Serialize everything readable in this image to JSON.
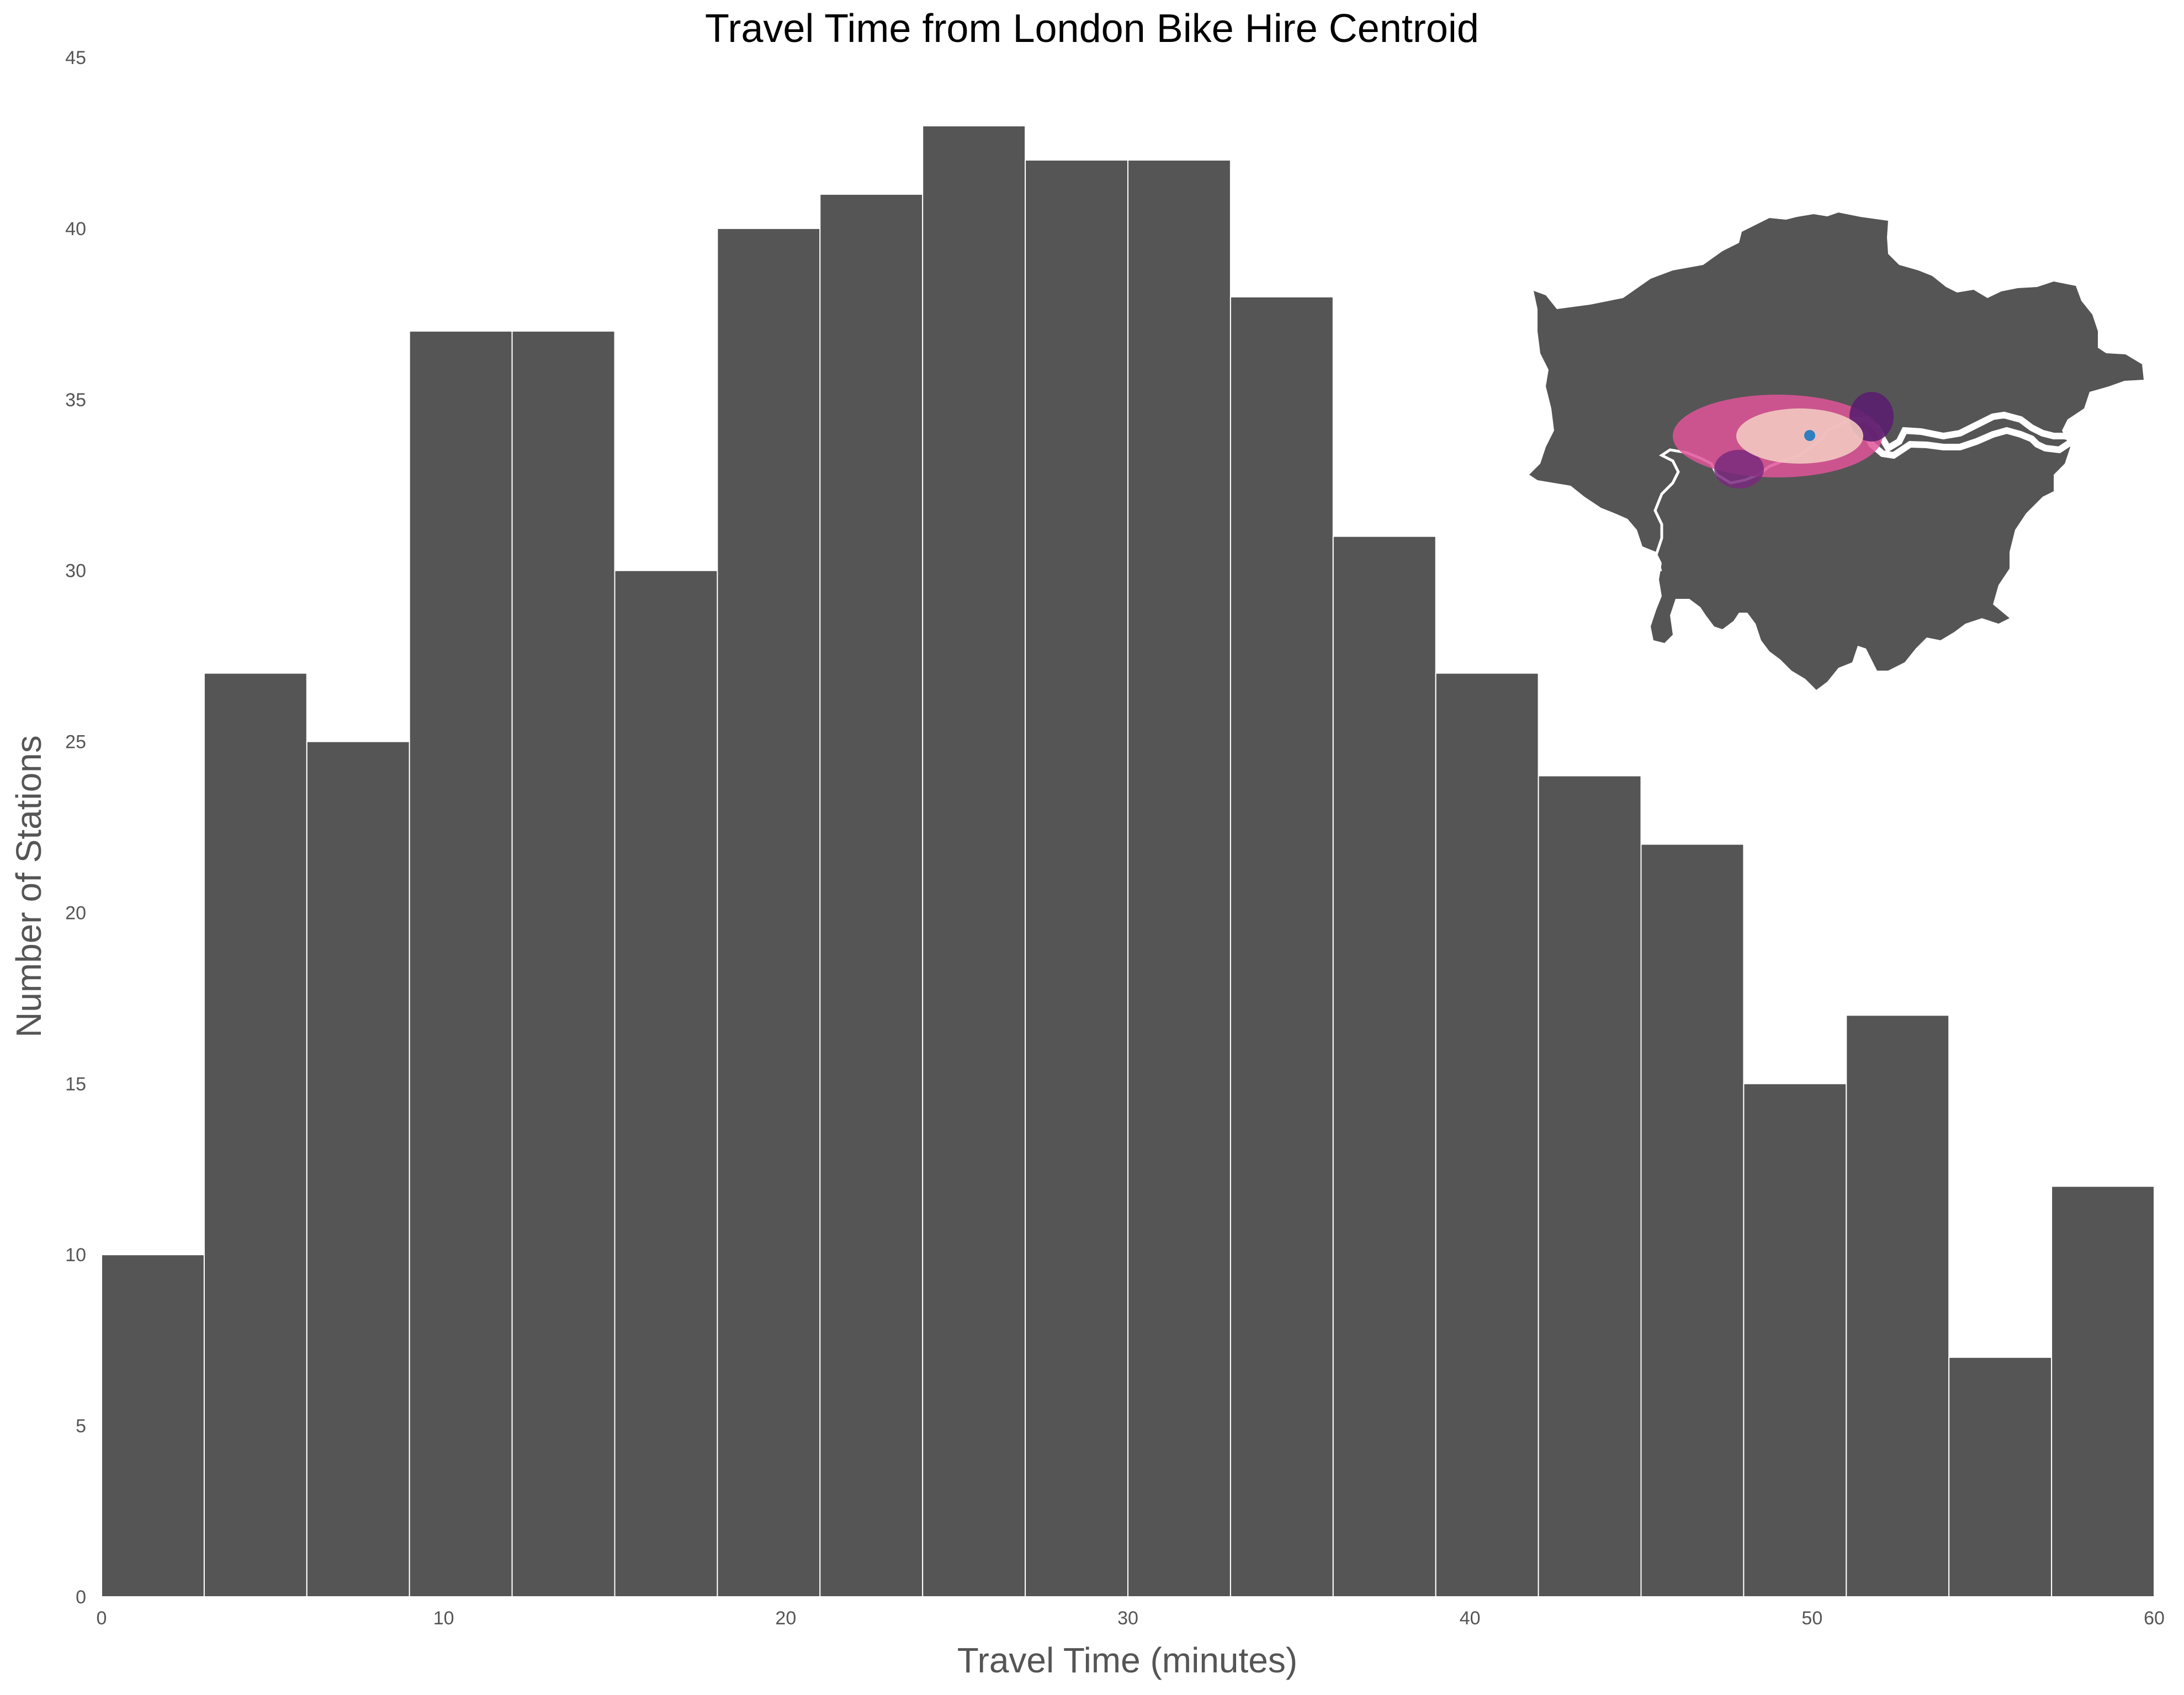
{
  "chart_data": {
    "type": "bar",
    "title": "Travel Time from London Bike Hire Centroid",
    "xlabel": "Travel Time (minutes)",
    "ylabel": "Number of Stations",
    "xlim": [
      0,
      60
    ],
    "ylim": [
      0,
      45
    ],
    "x_ticks": [
      "0",
      "10",
      "20",
      "30",
      "40",
      "50",
      "60"
    ],
    "y_ticks": [
      "0",
      "5",
      "10",
      "15",
      "20",
      "25",
      "30",
      "35",
      "40",
      "45"
    ],
    "bin_width": 3,
    "bins": [
      {
        "start": 0,
        "end": 3,
        "value": 10
      },
      {
        "start": 3,
        "end": 6,
        "value": 27
      },
      {
        "start": 6,
        "end": 9,
        "value": 25
      },
      {
        "start": 9,
        "end": 12,
        "value": 37
      },
      {
        "start": 12,
        "end": 15,
        "value": 37
      },
      {
        "start": 15,
        "end": 18,
        "value": 30
      },
      {
        "start": 18,
        "end": 21,
        "value": 40
      },
      {
        "start": 21,
        "end": 24,
        "value": 41
      },
      {
        "start": 24,
        "end": 27,
        "value": 43
      },
      {
        "start": 27,
        "end": 30,
        "value": 42
      },
      {
        "start": 30,
        "end": 33,
        "value": 42
      },
      {
        "start": 33,
        "end": 36,
        "value": 38
      },
      {
        "start": 36,
        "end": 39,
        "value": 31
      },
      {
        "start": 39,
        "end": 42,
        "value": 27
      },
      {
        "start": 42,
        "end": 45,
        "value": 24
      },
      {
        "start": 45,
        "end": 48,
        "value": 22
      },
      {
        "start": 48,
        "end": 51,
        "value": 15
      },
      {
        "start": 51,
        "end": 54,
        "value": 17
      },
      {
        "start": 54,
        "end": 57,
        "value": 7
      },
      {
        "start": 57,
        "end": 60,
        "value": 12
      }
    ],
    "grid": false,
    "legend": "none",
    "inset": {
      "type": "map",
      "region": "London boroughs outline with river and bike hire station points",
      "colors": {
        "land": "#555555",
        "river": "#ffffff",
        "points_near": "#f2c9c0",
        "points_mid": "#e0559a",
        "points_far": "#5a1f6e",
        "centroid": "#2f7fc1"
      }
    },
    "colors": {
      "bar": "#555555",
      "bar_edge": "#ffffff",
      "text": "#555555",
      "title": "#000000",
      "background": "#ffffff"
    }
  }
}
